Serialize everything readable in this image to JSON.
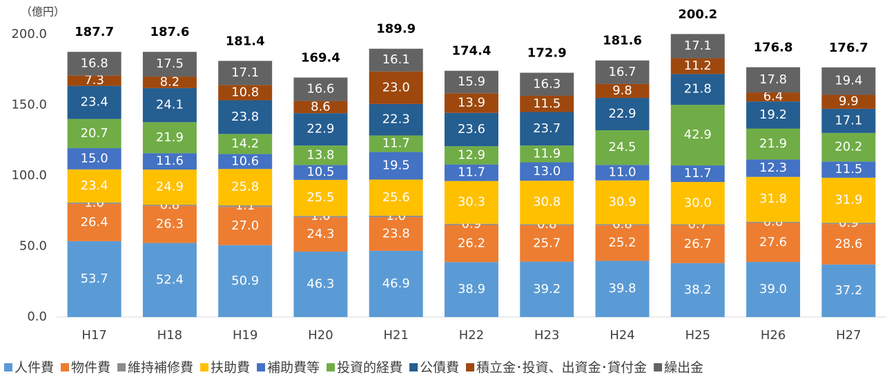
{
  "chart_data": {
    "type": "stacked_bar",
    "y_axis_label": "（億円）",
    "categories": [
      "H17",
      "H18",
      "H19",
      "H20",
      "H21",
      "H22",
      "H23",
      "H24",
      "H25",
      "H26",
      "H27"
    ],
    "series": [
      {
        "name": "人件費",
        "color": "#5b9bd5",
        "values": [
          53.7,
          52.4,
          50.9,
          46.3,
          46.9,
          38.9,
          39.2,
          39.8,
          38.2,
          39.0,
          37.2
        ],
        "value_labels": [
          "53.7",
          "52.4",
          "50.9",
          "46.3",
          "46.9",
          "38.9",
          "39.2",
          "39.8",
          "38.2",
          "39.0",
          "37.2"
        ]
      },
      {
        "name": "物件費",
        "color": "#ed7d31",
        "values": [
          26.4,
          26.3,
          27.0,
          24.3,
          23.8,
          26.2,
          25.7,
          25.2,
          26.7,
          27.6,
          28.6
        ],
        "value_labels": [
          "26.4",
          "26.3",
          "27.0",
          "24.3",
          "23.8",
          "26.2",
          "25.7",
          "25.2",
          "26.7",
          "27.6",
          "28.6"
        ]
      },
      {
        "name": "維持補修費",
        "color": "#8c8c8c",
        "values": [
          1.0,
          0.8,
          1.1,
          1.0,
          1.0,
          0.9,
          0.8,
          0.8,
          0.7,
          0.8,
          0.9
        ],
        "value_labels": [
          "1.0",
          "0.8",
          "1.1",
          "1.0",
          "1.0",
          "0.9",
          "0.8",
          "0.8",
          "0.7",
          "0.8",
          "0.9"
        ]
      },
      {
        "name": "扶助費",
        "color": "#ffc000",
        "values": [
          23.4,
          24.9,
          25.8,
          25.5,
          25.6,
          30.3,
          30.8,
          30.9,
          30.0,
          31.8,
          31.9
        ],
        "value_labels": [
          "23.4",
          "24.9",
          "25.8",
          "25.5",
          "25.6",
          "30.3",
          "30.8",
          "30.9",
          "30.0",
          "31.8",
          "31.9"
        ]
      },
      {
        "name": "補助費等",
        "color": "#4472c4",
        "values": [
          15.0,
          11.6,
          10.6,
          10.5,
          19.5,
          11.7,
          13.0,
          11.0,
          11.7,
          12.3,
          11.5
        ],
        "value_labels": [
          "15.0",
          "11.6",
          "10.6",
          "10.5",
          "19.5",
          "11.7",
          "13.0",
          "11.0",
          "11.7",
          "12.3",
          "11.5"
        ]
      },
      {
        "name": "投資的経費",
        "color": "#70ad47",
        "values": [
          20.7,
          21.9,
          14.2,
          13.8,
          11.7,
          12.9,
          11.9,
          24.5,
          42.9,
          21.9,
          20.2
        ],
        "value_labels": [
          "20.7",
          "21.9",
          "14.2",
          "13.8",
          "11.7",
          "12.9",
          "11.9",
          "24.5",
          "42.9",
          "21.9",
          "20.2"
        ]
      },
      {
        "name": "公債費",
        "color": "#255e91",
        "values": [
          23.4,
          24.1,
          23.8,
          22.9,
          22.3,
          23.6,
          23.7,
          22.9,
          21.8,
          19.2,
          17.1
        ],
        "value_labels": [
          "23.4",
          "24.1",
          "23.8",
          "22.9",
          "22.3",
          "23.6",
          "23.7",
          "22.9",
          "21.8",
          "19.2",
          "17.1"
        ]
      },
      {
        "name": "積立金･投資、出資金･貸付金",
        "color": "#9e480e",
        "values": [
          7.3,
          8.2,
          10.8,
          8.6,
          23.0,
          13.9,
          11.5,
          9.8,
          11.2,
          6.4,
          9.9
        ],
        "value_labels": [
          "7.3",
          "8.2",
          "10.8",
          "8.6",
          "23.0",
          "13.9",
          "11.5",
          "9.8",
          "11.2",
          "6.4",
          "9.9"
        ]
      },
      {
        "name": "繰出金",
        "color": "#636363",
        "values": [
          16.8,
          17.5,
          17.1,
          16.6,
          16.1,
          15.9,
          16.3,
          16.7,
          17.1,
          17.8,
          19.4
        ],
        "value_labels": [
          "16.8",
          "17.5",
          "17.1",
          "16.6",
          "16.1",
          "15.9",
          "16.3",
          "16.7",
          "17.1",
          "17.8",
          "19.4"
        ]
      }
    ],
    "totals": [
      187.7,
      187.6,
      181.4,
      169.4,
      189.9,
      174.4,
      172.9,
      181.6,
      200.2,
      176.8,
      176.7
    ],
    "ylim": [
      0,
      200
    ],
    "yticks": [
      {
        "value": 0,
        "label": "0.0"
      },
      {
        "value": 50,
        "label": "50.0"
      },
      {
        "value": 100,
        "label": "100.0"
      },
      {
        "value": 150,
        "label": "150.0"
      },
      {
        "value": 200,
        "label": "200.0"
      }
    ],
    "grid": false
  }
}
